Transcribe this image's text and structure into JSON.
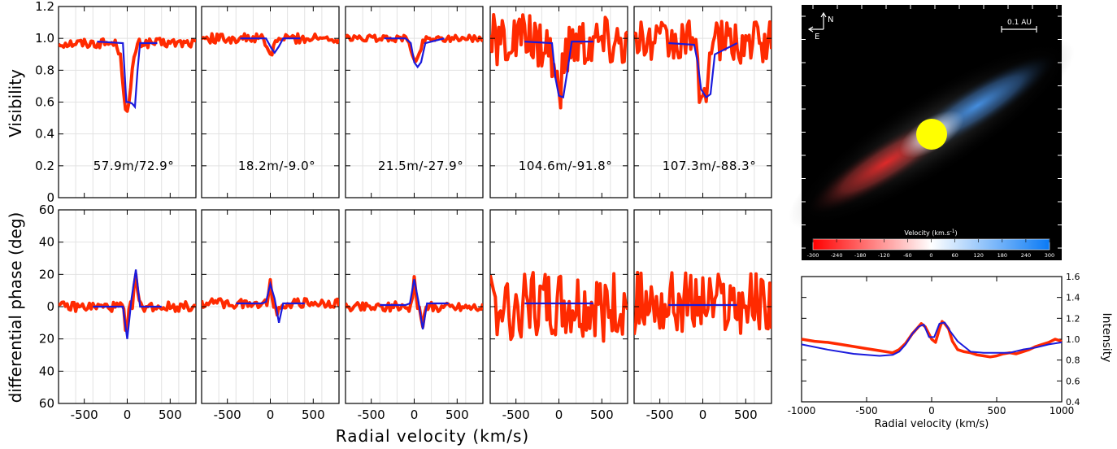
{
  "figure": {
    "shared_xlabel": "Radial velocity (km/s)"
  },
  "colors": {
    "observed": "#ff2a00",
    "model": "#1a1adc",
    "grid": "#e2e2e2"
  },
  "chart_data": [
    {
      "type": "line",
      "id": "visibility-panels",
      "ylabel": "Visibility",
      "ylim": [
        0,
        1.2
      ],
      "xlim": [
        -800,
        800
      ],
      "yticks": [
        "0",
        "0.2",
        "0.4",
        "0.6",
        "0.8",
        "1.0",
        "1.2"
      ],
      "xticks": [
        "-500",
        "0",
        "500"
      ],
      "grid": true,
      "panels": [
        {
          "label": "57.9m/72.9°",
          "obs_base": 0.97,
          "obs_noise": 0.03,
          "obs_dip": [
            {
              "c": 0,
              "w": 65,
              "d": 0.43
            }
          ],
          "mod_x": [
            -350,
            -50,
            -10,
            20,
            60,
            90,
            120,
            150,
            200,
            350
          ],
          "mod_y": [
            0.98,
            0.97,
            0.6,
            0.6,
            0.59,
            0.57,
            0.8,
            0.97,
            0.97,
            0.97
          ]
        },
        {
          "label": "18.2m/-9.0°",
          "obs_base": 1.0,
          "obs_noise": 0.03,
          "obs_dip": [
            {
              "c": 0,
              "w": 55,
              "d": 0.1
            }
          ],
          "mod_x": [
            -350,
            -50,
            10,
            50,
            100,
            150,
            250,
            350
          ],
          "mod_y": [
            1.0,
            1.0,
            0.94,
            0.91,
            0.95,
            1.0,
            1.0,
            1.0
          ]
        },
        {
          "label": "21.5m/-27.9°",
          "obs_base": 1.0,
          "obs_noise": 0.02,
          "obs_dip": [
            {
              "c": 20,
              "w": 60,
              "d": 0.15
            }
          ],
          "mod_x": [
            -350,
            -100,
            -40,
            0,
            40,
            80,
            130,
            350
          ],
          "mod_y": [
            1.0,
            1.0,
            0.97,
            0.85,
            0.82,
            0.85,
            0.97,
            1.0
          ],
          "dots": true
        },
        {
          "label": "104.6m/-91.8°",
          "obs_base": 0.98,
          "obs_noise": 0.17,
          "obs_dip": [
            {
              "c": 0,
              "w": 80,
              "d": 0.3
            }
          ],
          "mod_x": [
            -400,
            -80,
            -40,
            0,
            50,
            100,
            150,
            400
          ],
          "mod_y": [
            0.98,
            0.97,
            0.75,
            0.64,
            0.63,
            0.8,
            0.98,
            0.98
          ]
        },
        {
          "label": "107.3m/-88.3°",
          "obs_base": 0.98,
          "obs_noise": 0.14,
          "obs_dip": [
            {
              "c": 0,
              "w": 75,
              "d": 0.33
            }
          ],
          "mod_x": [
            -400,
            -100,
            -60,
            -20,
            40,
            90,
            140,
            400
          ],
          "mod_y": [
            0.97,
            0.96,
            0.85,
            0.68,
            0.63,
            0.65,
            0.9,
            0.97
          ]
        }
      ]
    },
    {
      "type": "line",
      "id": "phase-panels",
      "ylabel": "differential phase (deg)",
      "ylim": [
        -60,
        60
      ],
      "xlim": [
        -800,
        800
      ],
      "yticks": [
        "-60",
        "-40",
        "-20",
        "0",
        "20",
        "40",
        "60"
      ],
      "ytick_labels": [
        "60",
        "40",
        "20",
        "0",
        "20",
        "40",
        "60"
      ],
      "xticks": [
        "-500",
        "0",
        "500"
      ],
      "grid": true,
      "panels": [
        {
          "obs_base": 0,
          "obs_noise": 3,
          "features": [
            {
              "c": -10,
              "w": 20,
              "a": -22
            },
            {
              "c": 100,
              "w": 25,
              "a": 20
            }
          ],
          "mod_x": [
            -400,
            -100,
            -50,
            0,
            50,
            100,
            150,
            400
          ],
          "mod_y": [
            0,
            0,
            0,
            -20,
            5,
            23,
            0,
            0
          ]
        },
        {
          "obs_base": 2,
          "obs_noise": 3,
          "features": [
            {
              "c": 0,
              "w": 25,
              "a": 12
            },
            {
              "c": 80,
              "w": 25,
              "a": -8
            }
          ],
          "mod_x": [
            -400,
            -100,
            -50,
            0,
            50,
            100,
            150,
            400
          ],
          "mod_y": [
            2,
            2,
            3,
            14,
            5,
            -10,
            2,
            2
          ]
        },
        {
          "obs_base": 0,
          "obs_noise": 3,
          "features": [
            {
              "c": 0,
              "w": 25,
              "a": 16
            },
            {
              "c": 100,
              "w": 30,
              "a": -10
            }
          ],
          "mod_x": [
            -400,
            -100,
            -50,
            0,
            50,
            100,
            150,
            400
          ],
          "mod_y": [
            1,
            1,
            2,
            17,
            3,
            -14,
            2,
            2
          ]
        },
        {
          "obs_base": 0,
          "obs_noise": 22,
          "features": [],
          "mod_x": [
            -400,
            -100,
            0,
            100,
            400
          ],
          "mod_y": [
            2,
            2,
            2,
            2,
            2
          ]
        },
        {
          "obs_base": 2,
          "obs_noise": 20,
          "features": [],
          "mod_x": [
            -400,
            -100,
            0,
            100,
            400
          ],
          "mod_y": [
            1,
            1,
            1,
            1,
            1
          ]
        }
      ]
    },
    {
      "type": "line",
      "id": "intensity-panel",
      "ylabel": "Intensity",
      "xlabel": "Radial velocity (km/s)",
      "xlim": [
        -1000,
        1000
      ],
      "ylim": [
        0.4,
        1.6
      ],
      "xticks": [
        "-1000",
        "-500",
        "0",
        "500",
        "1000"
      ],
      "yticks": [
        "0.4",
        "0.6",
        "0.8",
        "1.0",
        "1.2",
        "1.4",
        "1.6"
      ],
      "series": [
        {
          "role": "observed",
          "x": [
            -1000,
            -900,
            -800,
            -700,
            -600,
            -500,
            -400,
            -300,
            -250,
            -200,
            -150,
            -100,
            -80,
            -50,
            0,
            30,
            60,
            80,
            100,
            130,
            160,
            200,
            250,
            300,
            350,
            400,
            450,
            500,
            550,
            600,
            650,
            700,
            750,
            800,
            850,
            900,
            950,
            1000
          ],
          "y": [
            1.0,
            0.98,
            0.97,
            0.95,
            0.93,
            0.91,
            0.89,
            0.87,
            0.9,
            0.96,
            1.05,
            1.12,
            1.15,
            1.12,
            1.0,
            0.97,
            1.1,
            1.17,
            1.15,
            1.1,
            0.98,
            0.9,
            0.88,
            0.87,
            0.85,
            0.84,
            0.83,
            0.84,
            0.86,
            0.87,
            0.86,
            0.88,
            0.9,
            0.93,
            0.95,
            0.97,
            1.0,
            0.98
          ]
        },
        {
          "role": "model",
          "x": [
            -1000,
            -800,
            -600,
            -400,
            -300,
            -250,
            -200,
            -150,
            -100,
            -60,
            -20,
            20,
            60,
            100,
            140,
            200,
            300,
            400,
            600,
            700,
            800,
            900,
            1000
          ],
          "y": [
            0.95,
            0.9,
            0.86,
            0.84,
            0.85,
            0.88,
            0.95,
            1.05,
            1.12,
            1.14,
            1.02,
            1.02,
            1.15,
            1.16,
            1.08,
            0.98,
            0.88,
            0.87,
            0.87,
            0.9,
            0.92,
            0.95,
            0.97
          ]
        }
      ]
    }
  ],
  "disk_image": {
    "compass_n": "N",
    "compass_e": "E",
    "scale_label": "0.1 AU",
    "colorbar_title": "Velocity (km.s",
    "colorbar_title_sup": "-1",
    "colorbar_title_end": ")",
    "colorbar_ticks": [
      "-300",
      "-240",
      "-180",
      "-120",
      "-60",
      "0",
      "60",
      "120",
      "180",
      "240",
      "300"
    ],
    "colorbar_left_color": "#ff0000",
    "colorbar_right_color": "#0a7af5",
    "star_color": "#ffff00"
  }
}
